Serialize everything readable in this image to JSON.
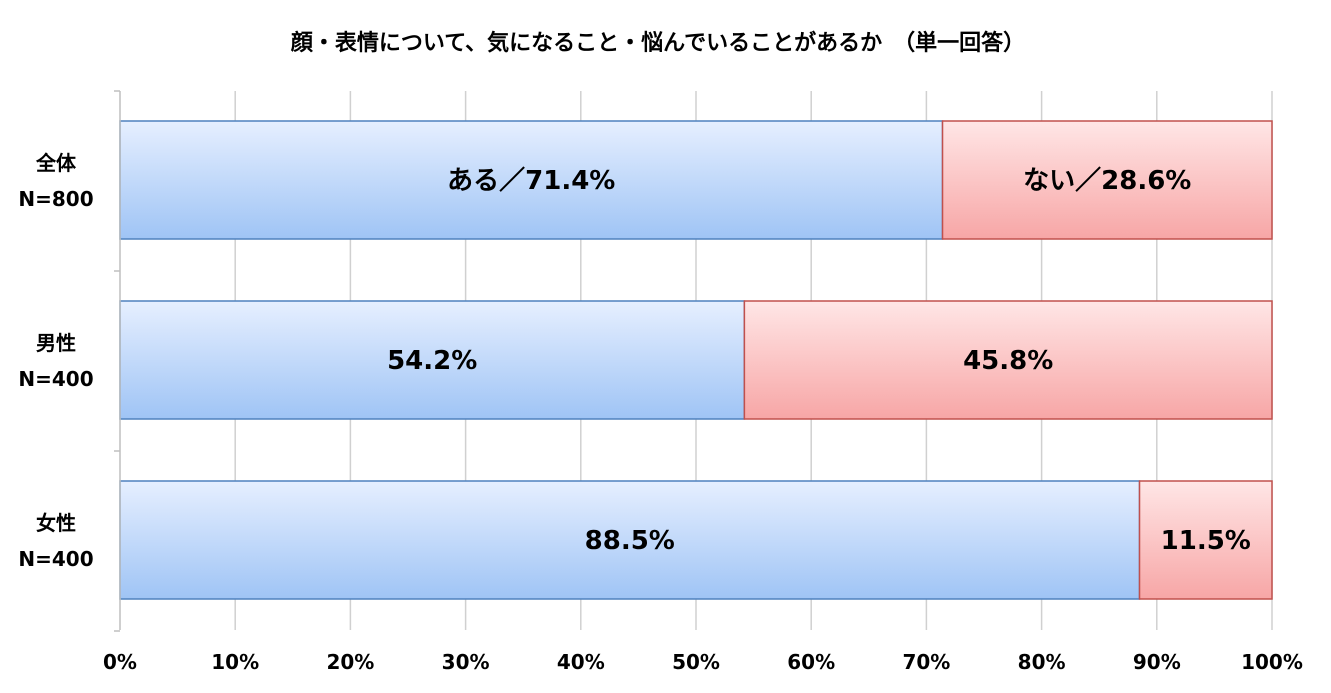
{
  "chart_data": {
    "type": "bar",
    "orientation": "horizontal",
    "stacked": true,
    "percent_stacked": true,
    "title": "顔・表情について、気になること・悩んでいることがあるか　（単一回答）",
    "categories": [
      [
        "全体",
        "N=800"
      ],
      [
        "男性",
        "N=400"
      ],
      [
        "女性",
        "N=400"
      ]
    ],
    "series": [
      {
        "key": "aru",
        "color": "#9fc4f5",
        "values": [
          71.4,
          54.2,
          88.5
        ],
        "labels": [
          "ある／71.4%",
          "54.2%",
          "88.5%"
        ]
      },
      {
        "key": "nai",
        "color": "#f7a6a6",
        "values": [
          28.6,
          45.8,
          11.5
        ],
        "labels": [
          "ない／28.6%",
          "45.8%",
          "11.5%"
        ]
      }
    ],
    "xlim": [
      0,
      100
    ],
    "xticks": [
      "0%",
      "10%",
      "20%",
      "30%",
      "40%",
      "50%",
      "60%",
      "70%",
      "80%",
      "90%",
      "100%"
    ],
    "grid": true,
    "legend": "none"
  }
}
